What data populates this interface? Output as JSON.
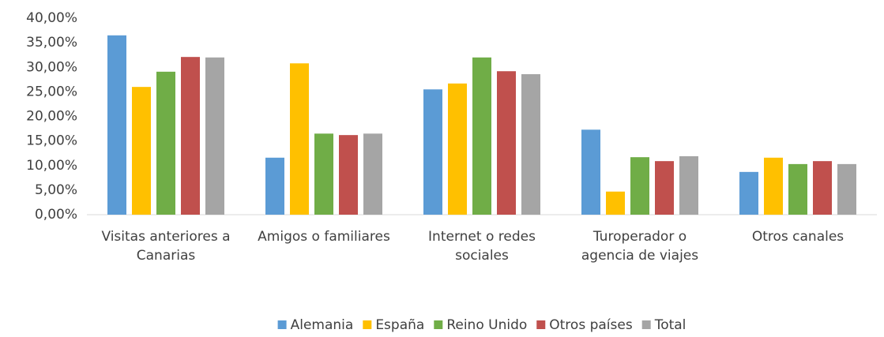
{
  "chart_data": {
    "type": "bar",
    "categories": [
      "Visitas anteriores a Canarias",
      "Amigos o familiares",
      "Internet o redes sociales",
      "Turoperador o agencia de viajes",
      "Otros canales"
    ],
    "series": [
      {
        "name": "Alemania",
        "color": "#5B9BD5",
        "values": [
          36.5,
          11.6,
          25.5,
          17.3,
          8.7
        ]
      },
      {
        "name": "España",
        "color": "#FFC000",
        "values": [
          26.0,
          30.8,
          26.7,
          4.7,
          11.6
        ]
      },
      {
        "name": "Reino Unido",
        "color": "#70AD47",
        "values": [
          29.1,
          16.5,
          32.0,
          11.7,
          10.3
        ]
      },
      {
        "name": "Otros países",
        "color": "#C0504D",
        "values": [
          32.1,
          16.2,
          29.2,
          10.9,
          10.9
        ]
      },
      {
        "name": "Total",
        "color": "#A5A5A5",
        "values": [
          32.0,
          16.5,
          28.6,
          11.9,
          10.3
        ]
      }
    ],
    "ylim": [
      0,
      40
    ],
    "yticks": [
      {
        "value": 0,
        "label": "0,00%"
      },
      {
        "value": 5,
        "label": "5,00%"
      },
      {
        "value": 10,
        "label": "10,00%"
      },
      {
        "value": 15,
        "label": "15,00%"
      },
      {
        "value": 20,
        "label": "20,00%"
      },
      {
        "value": 25,
        "label": "25,00%"
      },
      {
        "value": 30,
        "label": "30,00%"
      },
      {
        "value": 35,
        "label": "35,00%"
      },
      {
        "value": 40,
        "label": "40,00%"
      }
    ],
    "legend": "bottom"
  }
}
